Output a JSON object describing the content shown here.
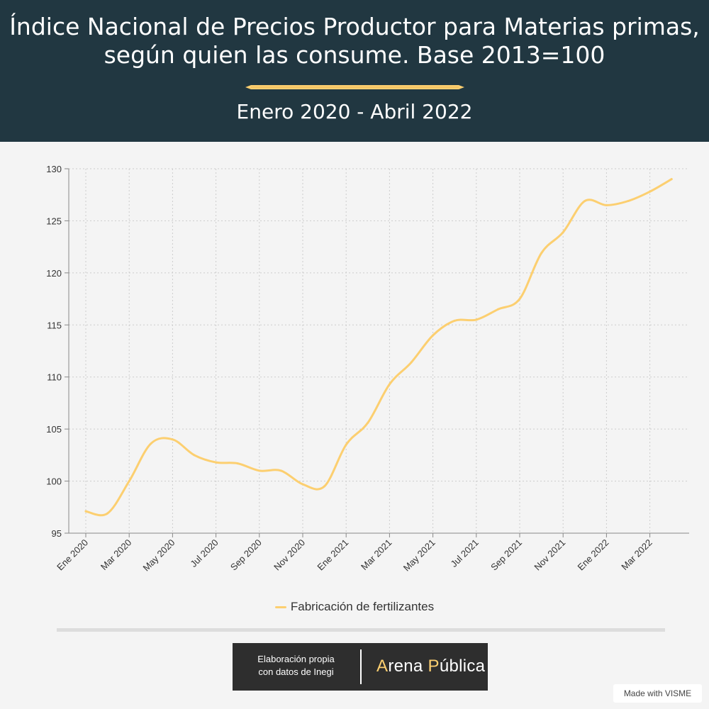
{
  "header": {
    "title_line1": "Índice Nacional de Precios Productor para Materias primas,",
    "title_line2": "según quien las consume. Base 2013=100",
    "subtitle": "Enero 2020 - Abril 2022"
  },
  "colors": {
    "header_bg": "#213741",
    "line": "#fccf70",
    "background": "#f4f4f4",
    "credit_bg": "#2e2e2e"
  },
  "chart_data": {
    "type": "line",
    "grid": true,
    "legend_position": "bottom",
    "ylim": [
      95,
      130
    ],
    "y_ticks": [
      95,
      100,
      105,
      110,
      115,
      120,
      125,
      130
    ],
    "x_tick_labels": [
      "Ene 2020",
      "Mar 2020",
      "May 2020",
      "Jul 2020",
      "Sep 2020",
      "Nov 2020",
      "Ene 2021",
      "Mar 2021",
      "May 2021",
      "Jul 2021",
      "Sep 2021",
      "Nov 2021",
      "Ene 2022",
      "Mar 2022"
    ],
    "x": [
      "Ene 2020",
      "Feb 2020",
      "Mar 2020",
      "Abr 2020",
      "May 2020",
      "Jun 2020",
      "Jul 2020",
      "Ago 2020",
      "Sep 2020",
      "Oct 2020",
      "Nov 2020",
      "Dic 2020",
      "Ene 2021",
      "Feb 2021",
      "Mar 2021",
      "Abr 2021",
      "May 2021",
      "Jun 2021",
      "Jul 2021",
      "Ago 2021",
      "Sep 2021",
      "Oct 2021",
      "Nov 2021",
      "Dic 2021",
      "Ene 2022",
      "Feb 2022",
      "Mar 2022",
      "Abr 2022"
    ],
    "series": [
      {
        "name": "Fabricación de fertilizantes",
        "color": "#fccf70",
        "values": [
          97.1,
          96.9,
          100.0,
          103.6,
          104.0,
          102.5,
          101.8,
          101.7,
          101.0,
          101.0,
          99.7,
          99.5,
          103.5,
          105.6,
          109.3,
          111.4,
          114.0,
          115.4,
          115.5,
          116.5,
          117.5,
          121.9,
          123.9,
          126.9,
          126.5,
          126.9,
          127.8,
          129.0
        ]
      }
    ]
  },
  "legend": {
    "label": "Fabricación de fertilizantes"
  },
  "credit": {
    "line1": "Elaboración propia",
    "line2": "con datos de Inegi",
    "brand_a": "A",
    "brand_rena": "rena ",
    "brand_p": "P",
    "brand_ublica": "ública"
  },
  "made_with": "Made with VISME"
}
